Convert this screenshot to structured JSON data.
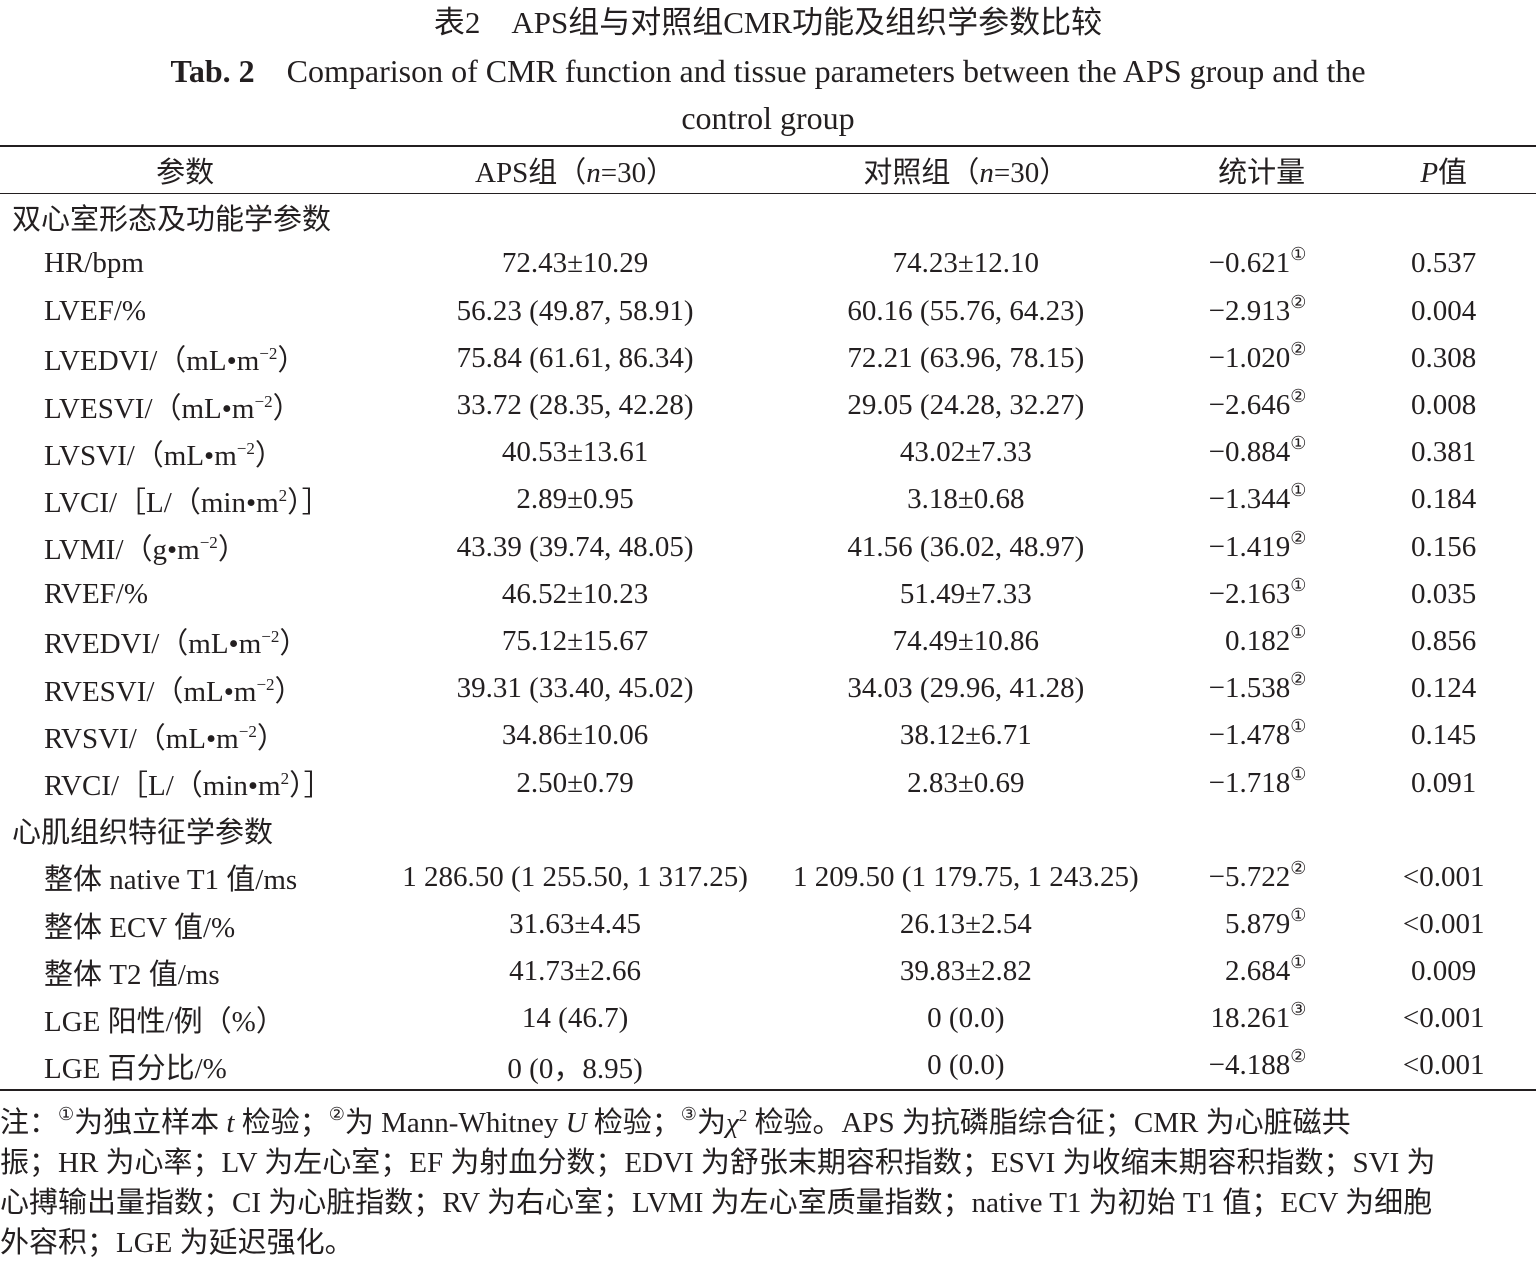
{
  "caption": {
    "cn_label": "表2",
    "cn_title": "APS组与对照组CMR功能及组织学参数比较",
    "en_label": "Tab. 2",
    "en_title_line1": "Comparison of CMR function and tissue parameters between the APS group and the",
    "en_title_line2": "control group"
  },
  "table": {
    "headers": {
      "param": "参数",
      "aps": "APS组（",
      "aps_n": "n",
      "aps_tail": "=30）",
      "ctrl": "对照组（",
      "ctrl_n": "n",
      "ctrl_tail": "=30）",
      "stat": "统计量",
      "p_italic": "P",
      "p_tail": "值"
    },
    "sections": [
      {
        "title": "双心室形态及功能学参数",
        "rows": [
          {
            "param": "HR/bpm",
            "sup": "",
            "tail": "",
            "aps": "72.43±10.29",
            "ctrl": "74.23±12.10",
            "stat": "−0.621",
            "mark": "①",
            "p": "0.537"
          },
          {
            "param": "LVEF/%",
            "sup": "",
            "tail": "",
            "aps": "56.23 (49.87, 58.91)",
            "ctrl": "60.16 (55.76, 64.23)",
            "stat": "−2.913",
            "mark": "②",
            "p": "0.004"
          },
          {
            "param": "LVEDVI/（mL•m",
            "sup": "−2",
            "tail": "）",
            "aps": "75.84 (61.61, 86.34)",
            "ctrl": "72.21 (63.96, 78.15)",
            "stat": "−1.020",
            "mark": "②",
            "p": "0.308"
          },
          {
            "param": "LVESVI/（mL•m",
            "sup": "−2",
            "tail": "）",
            "aps": "33.72 (28.35, 42.28)",
            "ctrl": "29.05 (24.28, 32.27)",
            "stat": "−2.646",
            "mark": "②",
            "p": "0.008"
          },
          {
            "param": "LVSVI/（mL•m",
            "sup": "−2",
            "tail": "）",
            "aps": "40.53±13.61",
            "ctrl": "43.02±7.33",
            "stat": "−0.884",
            "mark": "①",
            "p": "0.381"
          },
          {
            "param": "LVCI/［L/（min•m",
            "sup": "2",
            "tail": "）］",
            "aps": "2.89±0.95",
            "ctrl": "3.18±0.68",
            "stat": "−1.344",
            "mark": "①",
            "p": "0.184"
          },
          {
            "param": "LVMI/（g•m",
            "sup": "−2",
            "tail": "）",
            "aps": "43.39 (39.74, 48.05)",
            "ctrl": "41.56 (36.02, 48.97)",
            "stat": "−1.419",
            "mark": "②",
            "p": "0.156"
          },
          {
            "param": "RVEF/%",
            "sup": "",
            "tail": "",
            "aps": "46.52±10.23",
            "ctrl": "51.49±7.33",
            "stat": "−2.163",
            "mark": "①",
            "p": "0.035"
          },
          {
            "param": "RVEDVI/（mL•m",
            "sup": "−2",
            "tail": "）",
            "aps": "75.12±15.67",
            "ctrl": "74.49±10.86",
            "stat": "0.182",
            "mark": "①",
            "p": "0.856"
          },
          {
            "param": "RVESVI/（mL•m",
            "sup": "−2",
            "tail": "）",
            "aps": "39.31 (33.40, 45.02)",
            "ctrl": "34.03 (29.96, 41.28)",
            "stat": "−1.538",
            "mark": "②",
            "p": "0.124"
          },
          {
            "param": "RVSVI/（mL•m",
            "sup": "−2",
            "tail": "）",
            "aps": "34.86±10.06",
            "ctrl": "38.12±6.71",
            "stat": "−1.478",
            "mark": "①",
            "p": "0.145"
          },
          {
            "param": "RVCI/［L/（min•m",
            "sup": "2",
            "tail": "）］",
            "aps": "2.50±0.79",
            "ctrl": "2.83±0.69",
            "stat": "−1.718",
            "mark": "①",
            "p": "0.091"
          }
        ]
      },
      {
        "title": "心肌组织特征学参数",
        "rows": [
          {
            "param": "整体 native T1 值/ms",
            "sup": "",
            "tail": "",
            "aps": "1 286.50 (1 255.50, 1 317.25)",
            "ctrl": "1 209.50 (1 179.75, 1 243.25)",
            "stat": "−5.722",
            "mark": "②",
            "p": "<0.001"
          },
          {
            "param": "整体 ECV 值/%",
            "sup": "",
            "tail": "",
            "aps": "31.63±4.45",
            "ctrl": "26.13±2.54",
            "stat": "5.879",
            "mark": "①",
            "p": "<0.001"
          },
          {
            "param": "整体 T2 值/ms",
            "sup": "",
            "tail": "",
            "aps": "41.73±2.66",
            "ctrl": "39.83±2.82",
            "stat": "2.684",
            "mark": "①",
            "p": "0.009"
          },
          {
            "param": "LGE 阳性/例（%）",
            "sup": "",
            "tail": "",
            "aps": "14 (46.7)",
            "ctrl": "0 (0.0)",
            "stat": "18.261",
            "mark": "③",
            "p": "<0.001"
          },
          {
            "param": "LGE 百分比/%",
            "sup": "",
            "tail": "",
            "aps": "0 (0，8.95)",
            "ctrl": "0 (0.0)",
            "stat": "−4.188",
            "mark": "②",
            "p": "<0.001"
          }
        ]
      }
    ]
  },
  "footnote": {
    "lines": [
      [
        {
          "t": "注："
        },
        {
          "t": "①",
          "s": "mk"
        },
        {
          "t": "为独立样本 "
        },
        {
          "t": "t",
          "s": "i"
        },
        {
          "t": " 检验；"
        },
        {
          "t": "②",
          "s": "mk"
        },
        {
          "t": "为 Mann-Whitney "
        },
        {
          "t": "U",
          "s": "i"
        },
        {
          "t": " 检验；"
        },
        {
          "t": "③",
          "s": "mk"
        },
        {
          "t": "为"
        },
        {
          "t": "χ",
          "s": "i"
        },
        {
          "t": "2",
          "s": "sup"
        },
        {
          "t": " 检验。APS 为抗磷脂综合征；CMR 为心脏磁共"
        }
      ],
      [
        {
          "t": "振；HR 为心率；LV 为左心室；EF 为射血分数；EDVI 为舒张末期容积指数；ESVI 为收缩末期容积指数；SVI 为"
        }
      ],
      [
        {
          "t": "心搏输出量指数；CI 为心脏指数；RV 为右心室；LVMI 为左心室质量指数；native T1 为初始 T1 值；ECV 为细胞"
        }
      ],
      [
        {
          "t": "外容积；LGE 为延迟强化。"
        }
      ]
    ]
  }
}
